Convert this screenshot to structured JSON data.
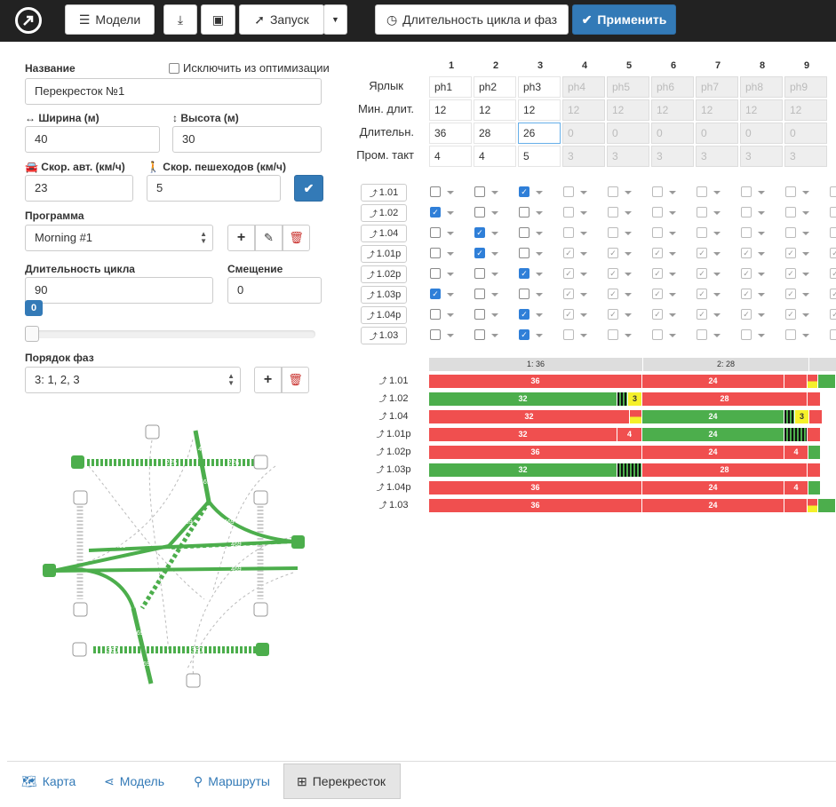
{
  "toolbar": {
    "models_label": "Модели",
    "launch_label": "Запуск",
    "cycle_label": "Длительность цикла и фаз",
    "apply_label": "Применить"
  },
  "form": {
    "name_label": "Название",
    "exclude_label": "Исключить из оптимизации",
    "name_value": "Перекресток №1",
    "width_label": "Ширина (м)",
    "width_value": "40",
    "height_label": "Высота (м)",
    "height_value": "30",
    "car_speed_label": "Скор. авт. (км/ч)",
    "car_speed_value": "23",
    "ped_speed_label": "Скор. пешеходов (км/ч)",
    "ped_speed_value": "5",
    "program_label": "Программа",
    "program_value": "Morning #1",
    "cycle_label": "Длительность цикла",
    "cycle_value": "90",
    "offset_label": "Смещение",
    "offset_value": "0",
    "slider_value": "0",
    "phase_order_label": "Порядок фаз",
    "phase_order_value": "3: 1, 2, 3"
  },
  "phase_table": {
    "row_labels": [
      "Ярлык",
      "Мин. длит.",
      "Длительн.",
      "Пром. такт"
    ],
    "columns": [
      "1",
      "2",
      "3",
      "4",
      "5",
      "6",
      "7",
      "8",
      "9"
    ],
    "tags": [
      "ph1",
      "ph2",
      "ph3",
      "ph4",
      "ph5",
      "ph6",
      "ph7",
      "ph8",
      "ph9"
    ],
    "min_dur": [
      "12",
      "12",
      "12",
      "12",
      "12",
      "12",
      "12",
      "12",
      "12"
    ],
    "duration": [
      "36",
      "28",
      "26",
      "0",
      "0",
      "0",
      "0",
      "0",
      "0"
    ],
    "intertact": [
      "4",
      "4",
      "5",
      "3",
      "3",
      "3",
      "3",
      "3",
      "3"
    ]
  },
  "movements": [
    "1.01",
    "1.02",
    "1.04",
    "1.01р",
    "1.02р",
    "1.03р",
    "1.04р",
    "1.03"
  ],
  "movement_checks": [
    [
      0,
      0,
      1
    ],
    [
      1,
      0,
      0
    ],
    [
      0,
      1,
      0
    ],
    [
      0,
      1,
      0
    ],
    [
      0,
      0,
      1
    ],
    [
      1,
      0,
      0
    ],
    [
      0,
      0,
      1
    ],
    [
      0,
      0,
      1
    ]
  ],
  "timeline": {
    "headers": [
      {
        "label": "1: 36"
      },
      {
        "label": "2: 28"
      }
    ],
    "rows": [
      {
        "name": "1.01",
        "segs": [
          {
            "c": "r",
            "t": "36"
          },
          {
            "c": "r",
            "t": "24"
          },
          {
            "c": "r",
            "t": ""
          },
          {
            "c": "yr",
            "t": ""
          },
          {
            "c": "g",
            "t": ""
          }
        ]
      },
      {
        "name": "1.02",
        "segs": [
          {
            "c": "g",
            "t": "32"
          },
          {
            "c": "blink",
            "t": ""
          },
          {
            "c": "y",
            "t": "3"
          },
          {
            "c": "r",
            "t": "28"
          },
          {
            "c": "r",
            "t": ""
          }
        ]
      },
      {
        "name": "1.04",
        "segs": [
          {
            "c": "r",
            "t": "32"
          },
          {
            "c": "yr",
            "t": ""
          },
          {
            "c": "g",
            "t": "24"
          },
          {
            "c": "blink",
            "t": ""
          },
          {
            "c": "y",
            "t": "3"
          },
          {
            "c": "r",
            "t": ""
          }
        ]
      },
      {
        "name": "1.01р",
        "segs": [
          {
            "c": "r",
            "t": "32"
          },
          {
            "c": "r",
            "t": "4"
          },
          {
            "c": "g",
            "t": "24"
          },
          {
            "c": "blink",
            "t": ""
          },
          {
            "c": "r",
            "t": ""
          }
        ]
      },
      {
        "name": "1.02р",
        "segs": [
          {
            "c": "r",
            "t": "36"
          },
          {
            "c": "r",
            "t": "24"
          },
          {
            "c": "r",
            "t": "4"
          },
          {
            "c": "g",
            "t": ""
          }
        ]
      },
      {
        "name": "1.03р",
        "segs": [
          {
            "c": "g",
            "t": "32"
          },
          {
            "c": "blink",
            "t": ""
          },
          {
            "c": "r",
            "t": "28"
          },
          {
            "c": "r",
            "t": ""
          }
        ]
      },
      {
        "name": "1.04р",
        "segs": [
          {
            "c": "r",
            "t": "36"
          },
          {
            "c": "r",
            "t": "24"
          },
          {
            "c": "r",
            "t": "4"
          },
          {
            "c": "g",
            "t": ""
          }
        ]
      },
      {
        "name": "1.03",
        "segs": [
          {
            "c": "r",
            "t": "36"
          },
          {
            "c": "r",
            "t": "24"
          },
          {
            "c": "r",
            "t": ""
          },
          {
            "c": "yr",
            "t": ""
          },
          {
            "c": "g",
            "t": ""
          }
        ]
      }
    ]
  },
  "diagram": {
    "flows": [
      "225",
      "226",
      "469",
      "469",
      "469",
      "469",
      "469",
      "469",
      "469",
      "469",
      "469",
      "469",
      "360",
      "360"
    ]
  },
  "tabs": {
    "map": "Карта",
    "model": "Модель",
    "routes": "Маршруты",
    "intersection": "Перекресток"
  },
  "colors": {
    "green": "#4cae4c",
    "red": "#f04f4f",
    "yellow": "#f5f02a",
    "primary": "#337ab7"
  }
}
